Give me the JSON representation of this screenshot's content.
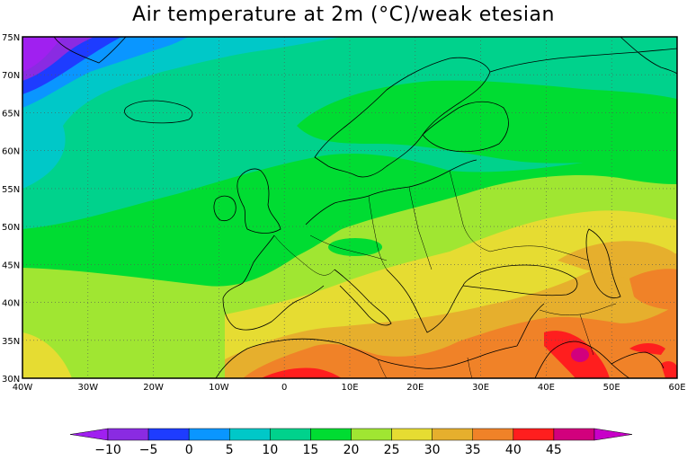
{
  "title": "Air temperature at 2m (°C)/weak etesian",
  "chart_data": {
    "type": "heatmap",
    "variable": "Air temperature at 2m (°C)",
    "x_ticks": [
      "40W",
      "30W",
      "20W",
      "10W",
      "0",
      "10E",
      "20E",
      "30E",
      "40E",
      "50E",
      "60E"
    ],
    "y_ticks": [
      "75N",
      "70N",
      "65N",
      "60N",
      "55N",
      "50N",
      "45N",
      "40N",
      "35N",
      "30N"
    ],
    "xlim": [
      -40,
      60
    ],
    "ylim": [
      30,
      75
    ],
    "colorbar": {
      "labels": [
        "-10",
        "-5",
        "0",
        "5",
        "10",
        "15",
        "20",
        "25",
        "30",
        "35",
        "40",
        "45"
      ],
      "colors": [
        "#a020f0",
        "#8a2be2",
        "#1e3cff",
        "#0a96ff",
        "#00c8c8",
        "#00d28c",
        "#00dc32",
        "#a0e632",
        "#e6dc32",
        "#e6af2d",
        "#f08228",
        "#ff1e1e",
        "#d2007d",
        "#c800c8"
      ]
    },
    "grid": "dotted"
  }
}
